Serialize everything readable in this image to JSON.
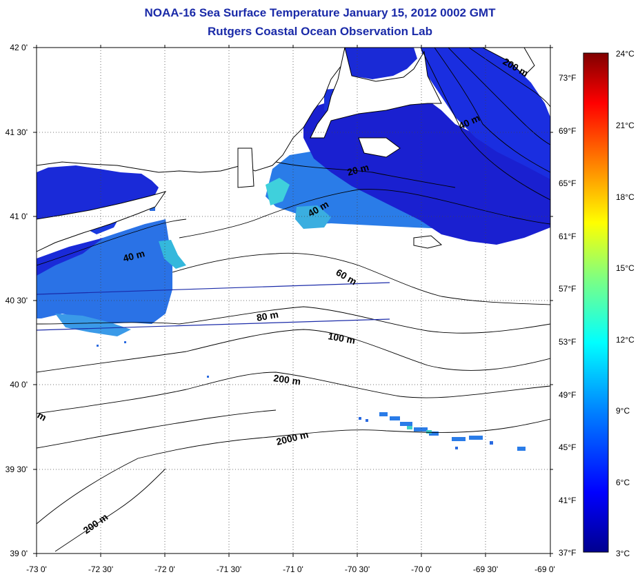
{
  "title": "NOAA-16 Sea Surface Temperature January 15, 2012 0002 GMT",
  "subtitle": "Rutgers Coastal Ocean Observation Lab",
  "axes": {
    "lon_labels": [
      "-73 0'",
      "-72 30'",
      "-72 0'",
      "-71 30'",
      "-71 0'",
      "-70 30'",
      "-70 0'",
      "-69 30'",
      "-69 0'"
    ],
    "lat_labels": [
      "42 0'",
      "41 30'",
      "41 0'",
      "40 30'",
      "40 0'",
      "39 30'",
      "39 0'"
    ],
    "lon_range": [
      -73,
      -69
    ],
    "lat_range": [
      39,
      42
    ],
    "grid": "dotted"
  },
  "depth_labels": [
    "200 m",
    "40 m",
    "20 m",
    "40 m",
    "40 m",
    "60 m",
    "80 m",
    "100 m",
    "200 m",
    "2000 m",
    "200 m",
    "m"
  ],
  "colorbar": {
    "celsius_labels": [
      "24°C",
      "21°C",
      "18°C",
      "15°C",
      "12°C",
      "9°C",
      "6°C",
      "3°C"
    ],
    "fahrenheit_labels": [
      "73°F",
      "69°F",
      "65°F",
      "61°F",
      "57°F",
      "53°F",
      "49°F",
      "45°F",
      "41°F",
      "37°F"
    ],
    "range_c": [
      3,
      24
    ],
    "colors": [
      "#00008f",
      "#0000ff",
      "#0080ff",
      "#00ffff",
      "#80ff80",
      "#ffff00",
      "#ff8000",
      "#ff0000",
      "#800000"
    ]
  },
  "sst_colors": {
    "cold": "#1a1ad6",
    "cool": "#1e5ae6",
    "mid": "#2a8cef",
    "warm": "#3fd0e0"
  }
}
